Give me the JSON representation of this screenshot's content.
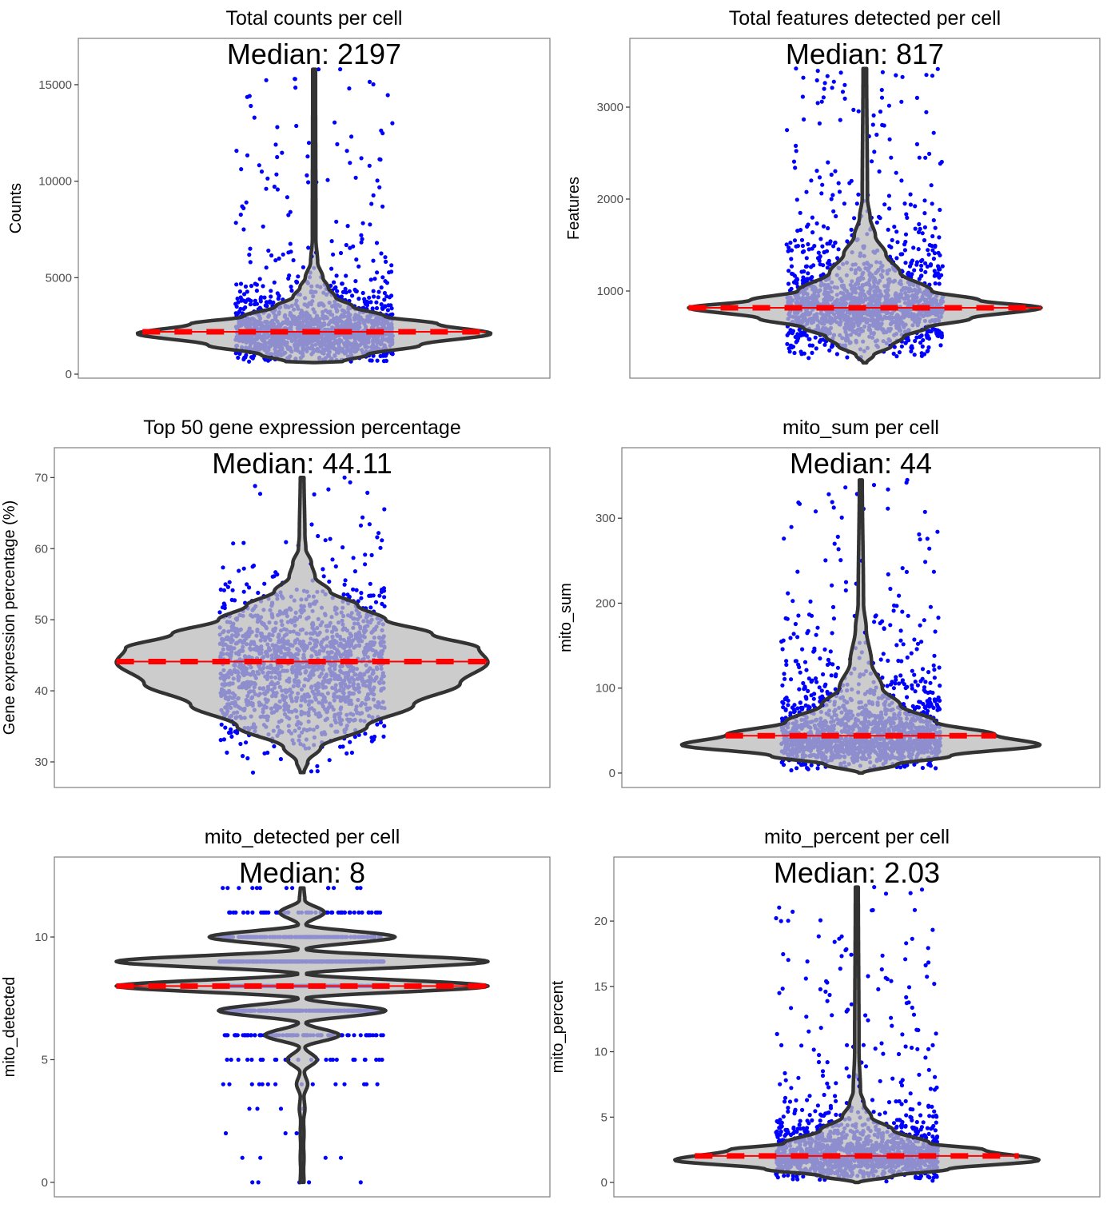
{
  "chart_data": [
    {
      "type": "violin",
      "title": "Total counts per cell",
      "ylabel": "Counts",
      "median_label": "Median: 2197",
      "median": 2197,
      "ylim": [
        -207,
        17400
      ],
      "yticks": [
        0,
        5000,
        10000,
        15000
      ],
      "ytick_labels": [
        "0",
        "5000",
        "10000",
        "15000"
      ],
      "discrete": false,
      "density_profile": [
        [
          600,
          0.01
        ],
        [
          650,
          0.16
        ],
        [
          1000,
          0.3
        ],
        [
          1500,
          0.6
        ],
        [
          2100,
          1.0
        ],
        [
          2600,
          0.7
        ],
        [
          3000,
          0.4
        ],
        [
          3500,
          0.22
        ],
        [
          4000,
          0.12
        ],
        [
          4500,
          0.08
        ],
        [
          5000,
          0.05
        ],
        [
          5800,
          0.02
        ],
        [
          7000,
          0.01
        ],
        [
          15800,
          0.008
        ]
      ],
      "outliers": [
        15300,
        15800,
        10800,
        10300,
        10350,
        8900,
        7900,
        8400,
        7000,
        7200,
        6500,
        6800,
        6300,
        6200,
        5900
      ],
      "colors": {
        "violin_fill": "#CCCCCC",
        "violin_outline": "#333333",
        "inside_points": "#8E8ECF",
        "outside_points": "#0000FF",
        "median_line": "#FF0000"
      }
    },
    {
      "type": "violin",
      "title": "Total features detected per cell",
      "ylabel": "Features",
      "median_label": "Median: 817",
      "median": 817,
      "ylim": [
        52,
        3748
      ],
      "yticks": [
        1000,
        2000,
        3000
      ],
      "ytick_labels": [
        "1000",
        "2000",
        "3000"
      ],
      "discrete": false,
      "density_profile": [
        [
          220,
          0.01
        ],
        [
          300,
          0.05
        ],
        [
          400,
          0.15
        ],
        [
          500,
          0.22
        ],
        [
          600,
          0.35
        ],
        [
          700,
          0.6
        ],
        [
          817,
          1.0
        ],
        [
          900,
          0.65
        ],
        [
          1000,
          0.38
        ],
        [
          1200,
          0.2
        ],
        [
          1400,
          0.12
        ],
        [
          1600,
          0.06
        ],
        [
          1800,
          0.03
        ],
        [
          2000,
          0.015
        ],
        [
          3420,
          0.01
        ]
      ],
      "outliers": [
        3420,
        3320,
        2800,
        2720,
        2700,
        2450,
        2050,
        2000,
        1980,
        1950
      ],
      "colors": {
        "violin_fill": "#CCCCCC",
        "violin_outline": "#333333",
        "inside_points": "#8E8ECF",
        "outside_points": "#0000FF",
        "median_line": "#FF0000"
      }
    },
    {
      "type": "violin",
      "title": "Top 50 gene expression percentage",
      "ylabel": "Gene expression percentage (%)",
      "median_label": "Median: 44.11",
      "median": 44.11,
      "ylim": [
        26.4,
        74.2
      ],
      "yticks": [
        30,
        40,
        50,
        60,
        70
      ],
      "ytick_labels": [
        "30",
        "40",
        "50",
        "60",
        "70"
      ],
      "discrete": false,
      "density_profile": [
        [
          28.5,
          0.01
        ],
        [
          30,
          0.03
        ],
        [
          32,
          0.1
        ],
        [
          35,
          0.35
        ],
        [
          38,
          0.6
        ],
        [
          41,
          0.85
        ],
        [
          44,
          1.0
        ],
        [
          46,
          0.95
        ],
        [
          48,
          0.7
        ],
        [
          50,
          0.45
        ],
        [
          52,
          0.3
        ],
        [
          54,
          0.15
        ],
        [
          56,
          0.07
        ],
        [
          58,
          0.05
        ],
        [
          60,
          0.02
        ],
        [
          62,
          0.015
        ],
        [
          70,
          0.01
        ]
      ],
      "outliers": [
        70,
        63.4,
        62.2,
        61.6,
        60.8,
        58.7,
        28.5,
        28.7,
        29.4
      ],
      "colors": {
        "violin_fill": "#CCCCCC",
        "violin_outline": "#333333",
        "inside_points": "#8E8ECF",
        "outside_points": "#0000FF",
        "median_line": "#FF0000"
      }
    },
    {
      "type": "violin",
      "title": "mito_sum per cell",
      "ylabel": "mito_sum",
      "median_label": "Median: 44",
      "median": 44,
      "ylim": [
        -17,
        383
      ],
      "yticks": [
        0,
        100,
        200,
        300
      ],
      "ytick_labels": [
        "0",
        "100",
        "200",
        "300"
      ],
      "discrete": false,
      "density_profile": [
        [
          0,
          0.01
        ],
        [
          10,
          0.2
        ],
        [
          20,
          0.5
        ],
        [
          33,
          1.0
        ],
        [
          45,
          0.75
        ],
        [
          60,
          0.42
        ],
        [
          80,
          0.22
        ],
        [
          100,
          0.12
        ],
        [
          130,
          0.06
        ],
        [
          170,
          0.03
        ],
        [
          200,
          0.015
        ],
        [
          345,
          0.008
        ]
      ],
      "outliers": [
        345,
        284,
        281,
        270,
        250,
        237,
        215,
        190,
        185,
        180
      ],
      "colors": {
        "violin_fill": "#CCCCCC",
        "violin_outline": "#333333",
        "inside_points": "#8E8ECF",
        "outside_points": "#0000FF",
        "median_line": "#FF0000"
      }
    },
    {
      "type": "violin",
      "title": "mito_detected per cell",
      "ylabel": "mito_detected",
      "median_label": "Median: 8",
      "median": 8,
      "ylim": [
        -0.59,
        13.26
      ],
      "yticks": [
        0,
        5,
        10
      ],
      "ytick_labels": [
        "0",
        "5",
        "10"
      ],
      "discrete": true,
      "density_profile": [
        [
          0,
          0.01
        ],
        [
          0.5,
          0.008
        ],
        [
          1,
          0.01
        ],
        [
          1.5,
          0.008
        ],
        [
          2,
          0.01
        ],
        [
          2.5,
          0.008
        ],
        [
          3,
          0.015
        ],
        [
          3.5,
          0.01
        ],
        [
          4,
          0.03
        ],
        [
          4.5,
          0.012
        ],
        [
          5,
          0.08
        ],
        [
          5.5,
          0.015
        ],
        [
          6,
          0.2
        ],
        [
          6.5,
          0.02
        ],
        [
          7,
          0.45
        ],
        [
          7.5,
          0.02
        ],
        [
          8,
          1.0
        ],
        [
          8.5,
          0.02
        ],
        [
          9,
          1.0
        ],
        [
          9.5,
          0.02
        ],
        [
          10,
          0.5
        ],
        [
          10.5,
          0.02
        ],
        [
          11,
          0.12
        ],
        [
          11.5,
          0.015
        ],
        [
          12,
          0.01
        ]
      ],
      "outliers": [
        0,
        0,
        0,
        1,
        1,
        1,
        12,
        12,
        12,
        12,
        12
      ],
      "colors": {
        "violin_fill": "#CCCCCC",
        "violin_outline": "#333333",
        "inside_points": "#8E8ECF",
        "outside_points": "#0000FF",
        "median_line": "#FF0000"
      }
    },
    {
      "type": "violin",
      "title": "mito_percent per cell",
      "ylabel": "mito_percent",
      "median_label": "Median: 2.03",
      "median": 2.03,
      "ylim": [
        -1.1,
        24.9
      ],
      "yticks": [
        0,
        5,
        10,
        15,
        20
      ],
      "ytick_labels": [
        "0",
        "5",
        "10",
        "15",
        "20"
      ],
      "discrete": false,
      "density_profile": [
        [
          0,
          0.01
        ],
        [
          0.5,
          0.2
        ],
        [
          1,
          0.5
        ],
        [
          1.7,
          1.0
        ],
        [
          2.5,
          0.7
        ],
        [
          3,
          0.4
        ],
        [
          4,
          0.2
        ],
        [
          5,
          0.08
        ],
        [
          6,
          0.04
        ],
        [
          7,
          0.02
        ],
        [
          10,
          0.012
        ],
        [
          22.6,
          0.008
        ]
      ],
      "outliers": [
        22.6,
        20,
        10.5,
        10.4,
        10.2,
        10.2,
        9.2,
        8,
        7.6
      ],
      "colors": {
        "violin_fill": "#CCCCCC",
        "violin_outline": "#333333",
        "inside_points": "#8E8ECF",
        "outside_points": "#0000FF",
        "median_line": "#FF0000"
      }
    }
  ]
}
